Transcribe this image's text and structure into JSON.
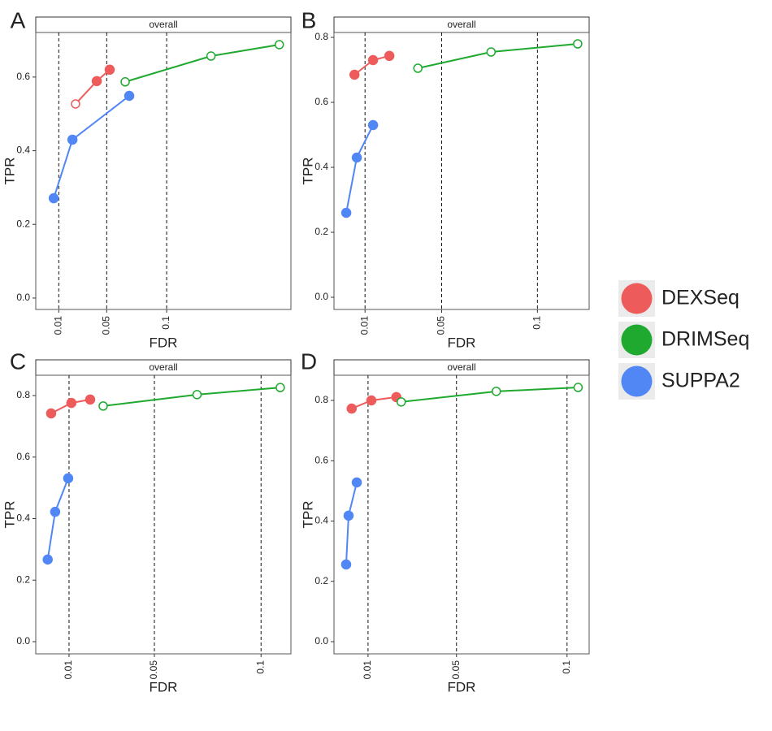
{
  "chart_data": [
    {
      "type": "line",
      "panel": "A",
      "title": "overall",
      "xlabel": "FDR",
      "ylabel": "TPR",
      "xlim": [
        -0.0092,
        0.2037
      ],
      "ylim": [
        -0.031,
        0.721
      ],
      "xticks": [
        0.01,
        0.05,
        0.1
      ],
      "yticks": [
        {
          "value": 0,
          "label": "0.0"
        },
        0.2,
        0.4,
        0.6
      ],
      "xtick_lines": "dashed",
      "series": [
        {
          "name": "DEXSeq",
          "color": "#ee5b5b",
          "x": [
            0.024,
            0.0417,
            0.0525
          ],
          "values": [
            0.527,
            0.589,
            0.62
          ],
          "filled": [
            false,
            true,
            true
          ]
        },
        {
          "name": "DRIMSeq",
          "color": "#1fa92f",
          "x": [
            0.0654,
            0.137,
            0.194
          ],
          "values": [
            0.587,
            0.657,
            0.688
          ],
          "filled": [
            false,
            false,
            false
          ]
        },
        {
          "name": "SUPPA2",
          "color": "#5186f5",
          "x": [
            0.0058,
            0.0214,
            0.0688
          ],
          "values": [
            0.271,
            0.43,
            0.549
          ],
          "filled": [
            true,
            true,
            true
          ]
        }
      ]
    },
    {
      "type": "line",
      "panel": "B",
      "title": "overall",
      "xlabel": "FDR",
      "ylabel": "TPR",
      "xlim": [
        -0.0062,
        0.127
      ],
      "ylim": [
        -0.0375,
        0.815
      ],
      "xticks": [
        0.01,
        0.05,
        0.1
      ],
      "yticks": [
        {
          "value": 0,
          "label": "0.0"
        },
        0.2,
        0.4,
        0.6,
        0.8
      ],
      "xtick_lines": "dashed",
      "series": [
        {
          "name": "DEXSeq",
          "color": "#ee5b5b",
          "x": [
            0.0045,
            0.0142,
            0.0227
          ],
          "values": [
            0.685,
            0.73,
            0.743
          ],
          "filled": [
            true,
            true,
            true
          ]
        },
        {
          "name": "DRIMSeq",
          "color": "#1fa92f",
          "x": [
            0.0376,
            0.0758,
            0.121
          ],
          "values": [
            0.705,
            0.755,
            0.78
          ],
          "filled": [
            false,
            false,
            false
          ]
        },
        {
          "name": "SUPPA2",
          "color": "#5186f5",
          "x": [
            0.0002,
            0.0057,
            0.0142
          ],
          "values": [
            0.26,
            0.43,
            0.53
          ],
          "filled": [
            true,
            true,
            true
          ]
        }
      ]
    },
    {
      "type": "line",
      "panel": "C",
      "title": "overall",
      "xlabel": "FDR",
      "ylabel": "TPR",
      "xlim": [
        -0.0056,
        0.114
      ],
      "ylim": [
        -0.0396,
        0.866
      ],
      "xticks": [
        0.01,
        0.05,
        0.1
      ],
      "yticks": [
        {
          "value": 0,
          "label": "0.0"
        },
        0.2,
        0.4,
        0.6,
        0.8
      ],
      "xtick_lines": "dashed",
      "series": [
        {
          "name": "DEXSeq",
          "color": "#ee5b5b",
          "x": [
            0.0016,
            0.0111,
            0.0199
          ],
          "values": [
            0.742,
            0.776,
            0.787
          ],
          "filled": [
            true,
            true,
            true
          ]
        },
        {
          "name": "DRIMSeq",
          "color": "#1fa92f",
          "x": [
            0.026,
            0.07,
            0.109
          ],
          "values": [
            0.766,
            0.803,
            0.826
          ],
          "filled": [
            false,
            false,
            false
          ]
        },
        {
          "name": "SUPPA2",
          "color": "#5186f5",
          "x": [
            0,
            0.0035,
            0.0096
          ],
          "values": [
            0.267,
            0.422,
            0.531
          ],
          "filled": [
            true,
            true,
            true
          ]
        }
      ]
    },
    {
      "type": "line",
      "panel": "D",
      "title": "overall",
      "xlabel": "FDR",
      "ylabel": "TPR",
      "xlim": [
        -0.0054,
        0.11
      ],
      "ylim": [
        -0.0404,
        0.8835
      ],
      "xticks": [
        0.01,
        0.05,
        0.1
      ],
      "yticks": [
        {
          "value": 0,
          "label": "0.0"
        },
        0.2,
        0.4,
        0.6,
        0.8
      ],
      "xtick_lines": "dashed",
      "series": [
        {
          "name": "DEXSeq",
          "color": "#ee5b5b",
          "x": [
            0.0026,
            0.0115,
            0.0228
          ],
          "values": [
            0.773,
            0.8,
            0.811
          ],
          "filled": [
            true,
            true,
            true
          ]
        },
        {
          "name": "DRIMSeq",
          "color": "#1fa92f",
          "x": [
            0.025,
            0.068,
            0.105
          ],
          "values": [
            0.795,
            0.83,
            0.843
          ],
          "filled": [
            false,
            false,
            false
          ]
        },
        {
          "name": "SUPPA2",
          "color": "#5186f5",
          "x": [
            0.0001,
            0.0012,
            0.0049
          ],
          "values": [
            0.256,
            0.418,
            0.528
          ],
          "filled": [
            true,
            true,
            true
          ]
        }
      ]
    }
  ]
}
